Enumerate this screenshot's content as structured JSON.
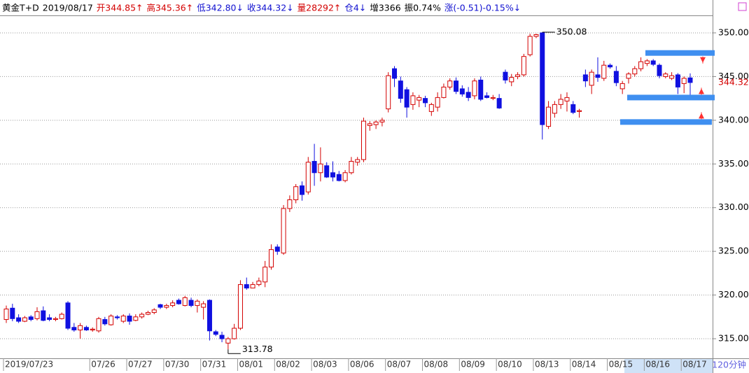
{
  "chart_data": {
    "type": "candlestick",
    "header": [
      "黄金T+D",
      "2019/08/17",
      "开344.85↑",
      "高345.36↑",
      "低342.80↓",
      "收344.32↓",
      "量28292↑",
      "仓4↓",
      "增3366",
      "振0.74%",
      "涨(-0.51)-0.15%↓"
    ],
    "period": "120分钟",
    "categories": [
      "2019/07/23",
      null,
      null,
      null,
      null,
      null,
      null,
      null,
      null,
      null,
      null,
      null,
      null,
      null,
      "07/26",
      null,
      null,
      null,
      null,
      null,
      "07/27",
      null,
      null,
      null,
      null,
      null,
      "07/30",
      null,
      null,
      null,
      null,
      null,
      "07/31",
      null,
      null,
      null,
      null,
      null,
      "08/01",
      null,
      null,
      null,
      null,
      null,
      "08/02",
      null,
      null,
      null,
      null,
      null,
      "08/03",
      null,
      null,
      null,
      null,
      null,
      "08/06",
      null,
      null,
      null,
      null,
      null,
      "08/07",
      null,
      null,
      null,
      null,
      null,
      "08/08",
      null,
      null,
      null,
      null,
      null,
      "08/09",
      null,
      null,
      null,
      null,
      null,
      "08/10",
      null,
      null,
      null,
      null,
      null,
      "08/13",
      null,
      null,
      null,
      null,
      null,
      "08/14",
      null,
      null,
      null,
      null,
      null,
      "08/15",
      null,
      null,
      null,
      null,
      null,
      "08/16",
      null,
      null,
      null,
      null,
      null,
      "08/17",
      null
    ],
    "open": [
      317.2,
      318.5,
      317.4,
      317.0,
      317.5,
      317.3,
      318.2,
      317.4,
      317.2,
      317.3,
      319.1,
      316.3,
      316.0,
      316.3,
      316.0,
      315.9,
      317.2,
      316.6,
      317.5,
      317.0,
      317.6,
      317.1,
      317.5,
      317.8,
      318.0,
      318.9,
      318.6,
      318.8,
      319.4,
      318.8,
      319.4,
      318.8,
      318.6,
      319.4,
      315.8,
      315.4,
      314.5,
      315.0,
      316.2,
      321.2,
      320.8,
      321.2,
      321.5,
      323.2,
      325.5,
      324.8,
      329.9,
      330.9,
      332.5,
      331.8,
      335.3,
      334.0,
      334.8,
      334.0,
      333.8,
      333.1,
      334.0,
      335.2,
      335.5,
      339.4,
      339.5,
      339.8,
      341.3,
      345.9,
      344.5,
      343.5,
      341.8,
      342.3,
      342.5,
      341.0,
      341.5,
      342.6,
      343.8,
      344.5,
      343.6,
      343.2,
      342.8,
      344.6,
      342.8,
      342.5,
      342.5,
      345.5,
      344.4,
      345.0,
      345.2,
      347.5,
      349.6,
      350.0,
      339.3,
      340.8,
      341.8,
      342.2,
      341.8,
      341.0,
      345.2,
      344.0,
      345.2,
      344.8,
      346.3,
      345.6,
      343.6,
      344.8,
      345.3,
      345.9,
      346.5,
      346.8,
      346.3,
      345.0,
      344.8,
      345.2,
      344.2,
      344.85
    ],
    "high": [
      318.8,
      319.0,
      317.8,
      317.6,
      317.7,
      318.6,
      318.7,
      317.8,
      317.5,
      318.0,
      319.3,
      316.8,
      316.8,
      316.5,
      316.3,
      317.5,
      317.5,
      317.8,
      317.7,
      317.8,
      317.9,
      317.8,
      318.0,
      318.2,
      318.5,
      319.0,
      319.0,
      319.4,
      319.6,
      319.9,
      319.7,
      319.5,
      319.3,
      319.5,
      316.0,
      315.8,
      315.2,
      316.7,
      321.7,
      322.0,
      321.5,
      322.0,
      323.9,
      325.8,
      325.8,
      330.3,
      331.4,
      332.7,
      333.0,
      335.8,
      337.3,
      336.9,
      335.2,
      335.3,
      334.2,
      334.3,
      335.8,
      335.8,
      340.3,
      339.9,
      340.0,
      340.3,
      345.5,
      346.2,
      345.0,
      343.8,
      343.2,
      342.9,
      342.8,
      342.0,
      343.2,
      344.2,
      344.8,
      344.9,
      344.0,
      343.8,
      344.8,
      345.0,
      343.2,
      342.9,
      343.0,
      345.8,
      345.3,
      345.5,
      347.6,
      349.9,
      349.9,
      350.08,
      342.2,
      342.2,
      343.0,
      343.2,
      342.2,
      341.3,
      345.8,
      345.8,
      347.2,
      346.8,
      346.5,
      346.2,
      344.5,
      345.5,
      346.2,
      347.2,
      347.0,
      347.0,
      346.5,
      345.5,
      345.5,
      345.4,
      345.0,
      345.36
    ],
    "low": [
      316.8,
      317.0,
      316.8,
      316.9,
      317.0,
      317.1,
      317.0,
      317.0,
      317.0,
      317.2,
      316.0,
      315.8,
      315.0,
      315.9,
      315.8,
      315.7,
      316.5,
      316.5,
      317.2,
      316.8,
      316.6,
      317.0,
      317.3,
      317.7,
      317.8,
      318.4,
      318.4,
      318.6,
      318.9,
      318.7,
      318.6,
      318.0,
      317.2,
      314.8,
      315.3,
      314.6,
      313.78,
      314.9,
      316.0,
      320.6,
      320.8,
      321.0,
      320.9,
      322.9,
      324.6,
      324.6,
      329.5,
      330.5,
      330.8,
      331.5,
      332.5,
      333.0,
      333.4,
      333.0,
      333.0,
      332.9,
      333.8,
      334.8,
      335.2,
      338.8,
      339.0,
      339.3,
      340.9,
      343.8,
      342.0,
      340.3,
      341.2,
      341.5,
      341.5,
      340.5,
      341.0,
      342.5,
      343.5,
      343.0,
      342.7,
      342.2,
      342.4,
      342.2,
      342.5,
      342.3,
      341.3,
      344.2,
      343.9,
      344.7,
      345.0,
      347.3,
      349.4,
      337.8,
      339.0,
      340.3,
      341.3,
      341.0,
      340.7,
      340.3,
      343.8,
      343.0,
      344.4,
      344.5,
      345.9,
      343.9,
      343.0,
      344.2,
      345.0,
      345.6,
      346.2,
      346.2,
      344.8,
      344.8,
      344.6,
      343.0,
      343.1,
      342.8
    ],
    "close": [
      318.4,
      317.3,
      317.0,
      317.4,
      317.2,
      318.1,
      317.1,
      317.2,
      317.3,
      317.8,
      316.2,
      316.0,
      316.5,
      316.0,
      316.1,
      317.3,
      316.7,
      317.6,
      317.4,
      317.6,
      317.0,
      317.5,
      317.8,
      318.0,
      318.3,
      318.6,
      318.8,
      319.1,
      319.0,
      319.7,
      318.8,
      319.3,
      319.0,
      315.9,
      315.5,
      315.0,
      315.0,
      316.2,
      321.2,
      320.8,
      321.2,
      321.6,
      323.2,
      325.2,
      325.0,
      329.9,
      330.9,
      332.4,
      331.5,
      335.2,
      334.0,
      335.0,
      333.5,
      333.5,
      333.1,
      334.0,
      335.3,
      335.5,
      339.9,
      339.6,
      339.8,
      340.0,
      345.1,
      344.8,
      342.5,
      341.5,
      342.8,
      342.6,
      342.0,
      341.8,
      342.6,
      343.8,
      344.5,
      343.3,
      343.0,
      342.6,
      344.5,
      342.4,
      342.6,
      342.6,
      341.4,
      344.6,
      344.9,
      345.2,
      347.3,
      349.6,
      349.8,
      339.5,
      341.5,
      341.8,
      342.4,
      342.6,
      340.9,
      341.1,
      344.5,
      345.5,
      344.9,
      346.3,
      346.1,
      344.3,
      344.2,
      345.3,
      345.9,
      346.7,
      346.8,
      346.4,
      345.1,
      345.3,
      345.1,
      343.8,
      344.8,
      344.32
    ],
    "up_color": "#d40000",
    "down_color": "#1010e0",
    "ylim": [
      312.76,
      352.0
    ],
    "yticks": [
      {
        "value": 315,
        "label": "315.00"
      },
      {
        "value": 320,
        "label": "320.00"
      },
      {
        "value": 325,
        "label": "325.00"
      },
      {
        "value": 330,
        "label": "330.00"
      },
      {
        "value": 335,
        "label": "335.00"
      },
      {
        "value": 340,
        "label": "340.00"
      },
      {
        "value": 345,
        "label": "345.00"
      },
      {
        "value": 350,
        "label": "350.00"
      }
    ],
    "grid": true,
    "levels": [
      347.7,
      342.6,
      339.8
    ],
    "level_color": "#3f8ff0"
  }
}
